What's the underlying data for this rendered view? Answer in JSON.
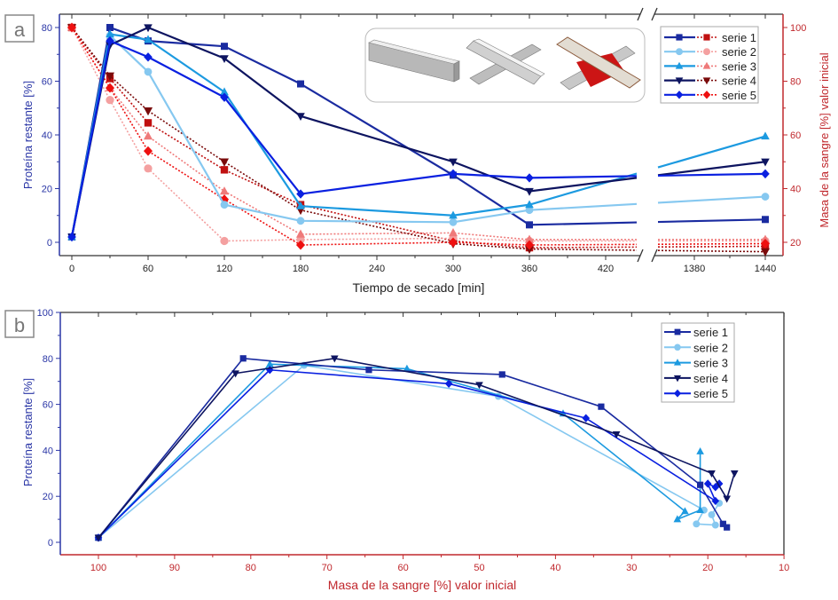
{
  "colors": {
    "blue_axis": "#2a36a6",
    "red_axis": "#c0282d",
    "frame": "#333333"
  },
  "series_style": [
    {
      "name": "serie 1",
      "marker": "square",
      "blue": "#1a2ba0",
      "red": "#c01010"
    },
    {
      "name": "serie 2",
      "marker": "circle",
      "blue": "#86c8f0",
      "red": "#f4a0a0"
    },
    {
      "name": "serie 3",
      "marker": "triangle-up",
      "blue": "#1c9ae0",
      "red": "#ef7a7a"
    },
    {
      "name": "serie 4",
      "marker": "triangle-down",
      "blue": "#0d1460",
      "red": "#7a0a0a"
    },
    {
      "name": "serie 5",
      "marker": "diamond",
      "blue": "#0a20e0",
      "red": "#ee1010"
    }
  ],
  "chart_data": [
    {
      "panel_label": "a",
      "type": "line",
      "xlabel": "Tiempo de secado [min]",
      "ylabel": "Proteína restante [%]",
      "y2label": "Masa de la sangre [%] valor inicial",
      "x_ticks": [
        "0",
        "60",
        "120",
        "180",
        "240",
        "300",
        "360",
        "420",
        "1380",
        "1440"
      ],
      "y_ticks": [
        "0",
        "20",
        "40",
        "60",
        "80"
      ],
      "y2_ticks": [
        "20",
        "40",
        "60",
        "80",
        "100"
      ],
      "x_break": [
        450,
        1370
      ],
      "ylim": [
        -5,
        85
      ],
      "y2lim": [
        15,
        105
      ],
      "x": [
        0,
        30,
        60,
        120,
        180,
        300,
        360,
        1440
      ],
      "legend_position": "top-right",
      "legend": [
        "serie 1",
        "serie 2",
        "serie 3",
        "serie 4",
        "serie 5"
      ],
      "inset": "three 3D-rendered sample geometries (bar, crossed bars, blood-stained crossed bars)",
      "series_protein": [
        {
          "name": "serie 1",
          "values": [
            2,
            80,
            75,
            73,
            59,
            25,
            6.5,
            8.5
          ]
        },
        {
          "name": "serie 2",
          "values": [
            2,
            77,
            63.5,
            14,
            8,
            7.5,
            12,
            17
          ]
        },
        {
          "name": "serie 3",
          "values": [
            2,
            77.5,
            75.5,
            56,
            13.5,
            10,
            14,
            39.5
          ]
        },
        {
          "name": "serie 4",
          "values": [
            2,
            73.5,
            80,
            68.5,
            47,
            30,
            19,
            30
          ]
        },
        {
          "name": "serie 5",
          "values": [
            2,
            75,
            69,
            54,
            18,
            25.5,
            24,
            25.5
          ]
        }
      ],
      "series_mass": [
        {
          "name": "serie 1",
          "values": [
            100,
            81,
            64.5,
            47,
            34,
            20.5,
            18,
            18.5
          ]
        },
        {
          "name": "serie 2",
          "values": [
            100,
            73,
            47.5,
            20.5,
            21,
            21.5,
            20.5,
            20.5
          ]
        },
        {
          "name": "serie 3",
          "values": [
            100,
            77.5,
            59.5,
            39,
            23,
            23.5,
            21,
            21
          ]
        },
        {
          "name": "serie 4",
          "values": [
            100,
            82,
            69,
            50,
            32,
            19.5,
            17.5,
            16.5
          ]
        },
        {
          "name": "serie 5",
          "values": [
            100,
            77.5,
            54,
            36,
            19,
            20,
            19,
            19.5
          ]
        }
      ]
    },
    {
      "panel_label": "b",
      "type": "line",
      "xlabel": "Masa de la sangre [%] valor inicial",
      "ylabel": "Proteína restante [%]",
      "x_ticks": [
        "100",
        "90",
        "80",
        "70",
        "60",
        "50",
        "40",
        "30",
        "20",
        "10"
      ],
      "y_ticks": [
        "0",
        "20",
        "40",
        "60",
        "80",
        "100"
      ],
      "xlim": [
        105,
        10
      ],
      "ylim": [
        -5,
        100
      ],
      "legend_position": "top-right",
      "legend": [
        "serie 1",
        "serie 2",
        "serie 3",
        "serie 4",
        "serie 5"
      ],
      "series": [
        {
          "name": "serie 1",
          "points": [
            [
              100,
              2
            ],
            [
              81,
              80
            ],
            [
              64.5,
              75
            ],
            [
              47,
              73
            ],
            [
              34,
              59
            ],
            [
              21,
              25
            ],
            [
              18,
              8
            ],
            [
              17.5,
              6.5
            ]
          ]
        },
        {
          "name": "serie 2",
          "points": [
            [
              100,
              2
            ],
            [
              73,
              77
            ],
            [
              47.5,
              63.5
            ],
            [
              20.5,
              14
            ],
            [
              21.5,
              8
            ],
            [
              19,
              7.5
            ],
            [
              19.5,
              12
            ],
            [
              18.5,
              17
            ]
          ]
        },
        {
          "name": "serie 3",
          "points": [
            [
              100,
              2
            ],
            [
              77.5,
              77.5
            ],
            [
              59.5,
              75.5
            ],
            [
              39,
              56
            ],
            [
              23,
              13.5
            ],
            [
              24,
              10
            ],
            [
              21,
              14
            ],
            [
              21,
              39.5
            ]
          ]
        },
        {
          "name": "serie 4",
          "points": [
            [
              100,
              2
            ],
            [
              82,
              73.5
            ],
            [
              69,
              80
            ],
            [
              50,
              68.5
            ],
            [
              32,
              47
            ],
            [
              19.5,
              30
            ],
            [
              17.5,
              19
            ],
            [
              16.5,
              30
            ]
          ]
        },
        {
          "name": "serie 5",
          "points": [
            [
              100,
              2
            ],
            [
              77.5,
              75
            ],
            [
              54,
              69
            ],
            [
              36,
              54
            ],
            [
              19,
              18
            ],
            [
              20,
              25.5
            ],
            [
              19,
              24
            ],
            [
              18.5,
              25.5
            ]
          ]
        }
      ]
    }
  ]
}
